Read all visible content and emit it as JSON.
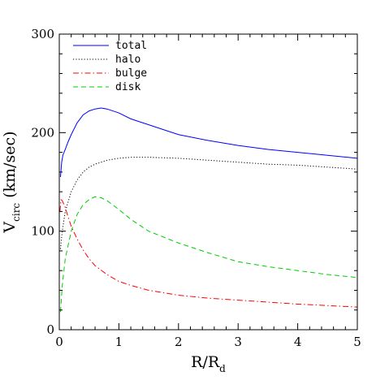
{
  "chart_data": {
    "type": "line",
    "title": "",
    "xlabel": {
      "main": "R/R",
      "sub": "d"
    },
    "ylabel": {
      "pre": "V",
      "sub": "circ",
      "post": " (km/sec)"
    },
    "xlim": [
      0,
      5
    ],
    "ylim": [
      0,
      300
    ],
    "xticks": [
      0,
      1,
      2,
      3,
      4,
      5
    ],
    "yticks": [
      0,
      100,
      200,
      300
    ],
    "grid": false,
    "legend_position": "top-left",
    "series": [
      {
        "name": "total",
        "color": "#0000ff",
        "dash": "solid",
        "points": [
          [
            0.02,
            155
          ],
          [
            0.04,
            170
          ],
          [
            0.06,
            177
          ],
          [
            0.1,
            183
          ],
          [
            0.15,
            191
          ],
          [
            0.2,
            198
          ],
          [
            0.3,
            210
          ],
          [
            0.4,
            218
          ],
          [
            0.5,
            222
          ],
          [
            0.6,
            224
          ],
          [
            0.7,
            225
          ],
          [
            0.8,
            224
          ],
          [
            1.0,
            220
          ],
          [
            1.2,
            214
          ],
          [
            1.5,
            208
          ],
          [
            2.0,
            198
          ],
          [
            2.5,
            192
          ],
          [
            3.0,
            187
          ],
          [
            3.5,
            183
          ],
          [
            4.0,
            180
          ],
          [
            4.5,
            177
          ],
          [
            5.0,
            174
          ]
        ]
      },
      {
        "name": "halo",
        "color": "#000000",
        "dash": "dotted",
        "points": [
          [
            0.02,
            82
          ],
          [
            0.05,
            100
          ],
          [
            0.1,
            120
          ],
          [
            0.2,
            140
          ],
          [
            0.3,
            152
          ],
          [
            0.4,
            160
          ],
          [
            0.5,
            165
          ],
          [
            0.6,
            168
          ],
          [
            0.8,
            172
          ],
          [
            1.0,
            174
          ],
          [
            1.2,
            175
          ],
          [
            1.5,
            175
          ],
          [
            2.0,
            174
          ],
          [
            2.5,
            172
          ],
          [
            3.0,
            170
          ],
          [
            3.5,
            168
          ],
          [
            4.0,
            167
          ],
          [
            4.5,
            165
          ],
          [
            5.0,
            163
          ]
        ]
      },
      {
        "name": "bulge",
        "color": "#ff0000",
        "dash": "dashdot",
        "points": [
          [
            0.01,
            120
          ],
          [
            0.03,
            132
          ],
          [
            0.05,
            131
          ],
          [
            0.1,
            124
          ],
          [
            0.15,
            114
          ],
          [
            0.2,
            105
          ],
          [
            0.3,
            92
          ],
          [
            0.4,
            81
          ],
          [
            0.5,
            72
          ],
          [
            0.6,
            65
          ],
          [
            0.8,
            56
          ],
          [
            1.0,
            49
          ],
          [
            1.2,
            45
          ],
          [
            1.5,
            40
          ],
          [
            2.0,
            35
          ],
          [
            2.5,
            32
          ],
          [
            3.0,
            30
          ],
          [
            3.5,
            28
          ],
          [
            4.0,
            26
          ],
          [
            4.5,
            24.5
          ],
          [
            5.0,
            23
          ]
        ]
      },
      {
        "name": "disk",
        "color": "#00cc00",
        "dash": "dashed",
        "points": [
          [
            0.02,
            18
          ],
          [
            0.05,
            45
          ],
          [
            0.1,
            72
          ],
          [
            0.2,
            100
          ],
          [
            0.3,
            117
          ],
          [
            0.4,
            127
          ],
          [
            0.5,
            132
          ],
          [
            0.6,
            135
          ],
          [
            0.7,
            134
          ],
          [
            0.8,
            131
          ],
          [
            1.0,
            122
          ],
          [
            1.2,
            112
          ],
          [
            1.5,
            100
          ],
          [
            2.0,
            88
          ],
          [
            2.5,
            78
          ],
          [
            3.0,
            69
          ],
          [
            3.5,
            64
          ],
          [
            4.0,
            60
          ],
          [
            4.5,
            56
          ],
          [
            5.0,
            53
          ]
        ]
      }
    ]
  }
}
